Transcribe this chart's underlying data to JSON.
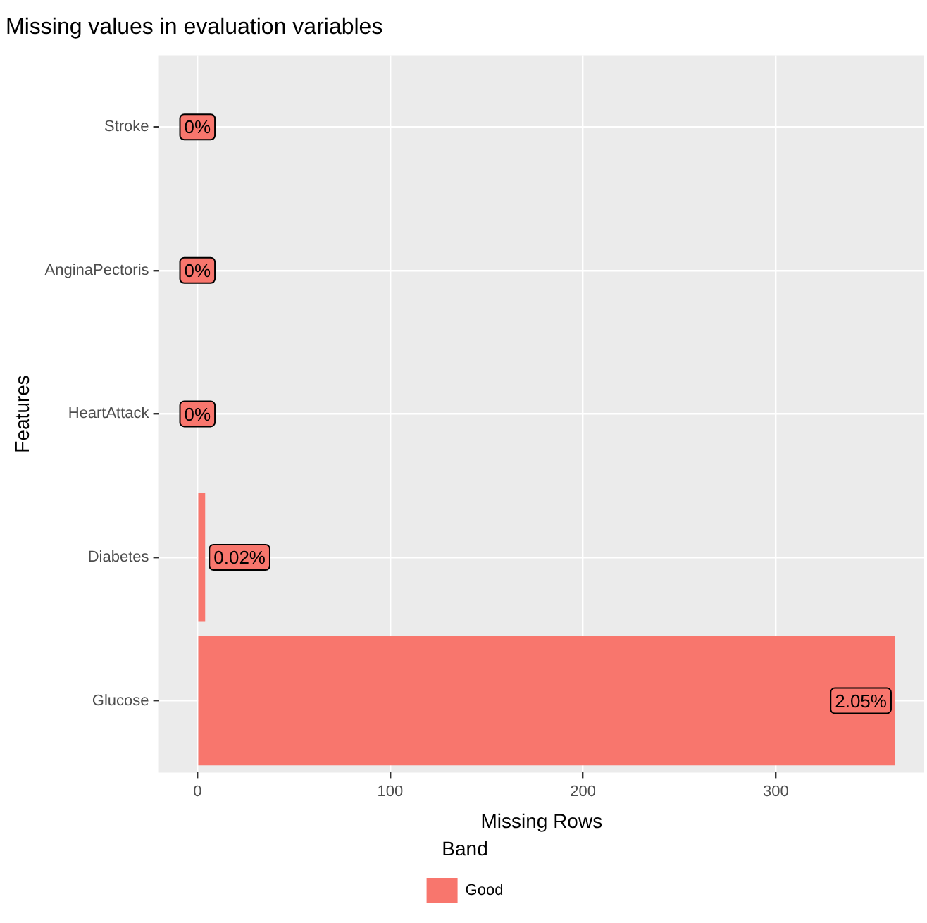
{
  "chart_data": {
    "type": "bar",
    "orientation": "horizontal",
    "title": "Missing values in evaluation variables",
    "xlabel": "Missing Rows",
    "ylabel": "Features",
    "legend_title": "Band",
    "categories": [
      "Stroke",
      "AnginaPectoris",
      "HeartAttack",
      "Diabetes",
      "Glucose"
    ],
    "series": [
      {
        "name": "Good",
        "color": "#f8766d",
        "values": [
          0,
          0,
          0,
          4,
          362
        ]
      }
    ],
    "annotations": [
      {
        "text": "0%",
        "x": 0,
        "y": "Stroke"
      },
      {
        "text": "0%",
        "x": 0,
        "y": "AnginaPectoris"
      },
      {
        "text": "0%",
        "x": 0,
        "y": "HeartAttack"
      },
      {
        "text": "0.02%",
        "x": 4,
        "y": "Diabetes"
      },
      {
        "text": "2.05%",
        "x": 362,
        "y": "Glucose"
      }
    ],
    "xlim": [
      -20,
      377
    ],
    "xticks": [
      0,
      100,
      200,
      300
    ],
    "grid": true,
    "legend": "bottom"
  }
}
